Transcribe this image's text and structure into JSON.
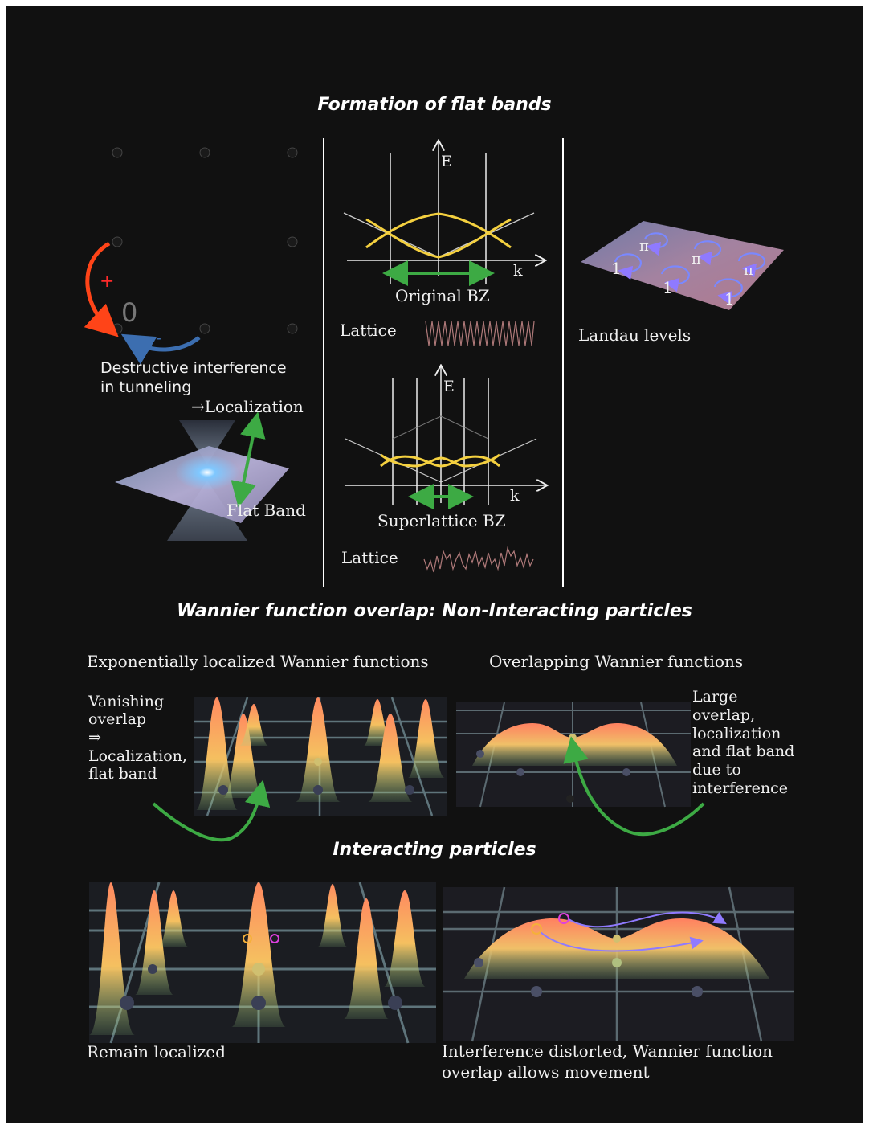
{
  "section1": {
    "title": "Formation of flat bands",
    "interference_caption": [
      "Destructive interference",
      "in tunneling"
    ],
    "plus_sign": "+",
    "minus_sign": "-",
    "zero_label": "0",
    "localization_label": "→Localization",
    "flat_band_label": "Flat Band",
    "band1": {
      "axis_e": "E",
      "axis_k": "k",
      "bz_label": "Original BZ",
      "lattice_label": "Lattice"
    },
    "band2": {
      "axis_e": "E",
      "axis_k": "k",
      "bz_label": "Superlattice BZ",
      "lattice_label": "Lattice"
    },
    "landau": {
      "label": "Landau levels",
      "phases": [
        "π",
        "π",
        "π",
        "1",
        "1",
        "1"
      ]
    }
  },
  "section2": {
    "title": "Wannier function overlap: Non-Interacting particles",
    "left_caption": "Exponentially localized Wannier functions",
    "right_caption": "Overlapping Wannier functions",
    "left_note": [
      "Vanishing",
      "overlap",
      "⇒",
      "Localization,",
      "flat band"
    ],
    "right_note": [
      "Large",
      "overlap,",
      "localization",
      "and flat band",
      "due to",
      "interference"
    ]
  },
  "section3": {
    "title": "Interacting particles",
    "left_caption": "Remain localized",
    "right_caption": [
      "Interference distorted, Wannier function",
      "overlap allows movement"
    ]
  },
  "colors": {
    "background": "#111111",
    "band_line": "#f4d03f",
    "arrow_green": "#3daa44",
    "arrow_red": "#ff4418",
    "arrow_blue": "#3c6eb0",
    "vortex": "#7a88ff"
  }
}
